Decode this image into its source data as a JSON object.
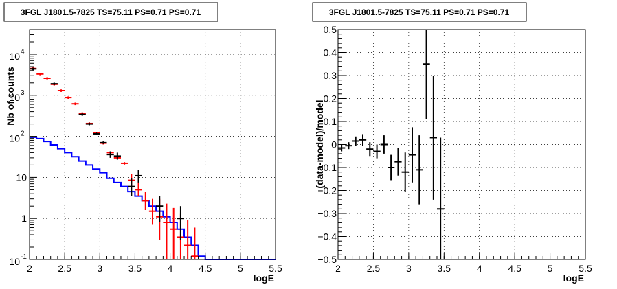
{
  "chart_data": [
    {
      "type": "histogram",
      "title": "3FGL J1801.5-7825 TS=75.11 PS=0.71 PS=0.71",
      "xlabel": "logE",
      "ylabel": "Nb of counts",
      "xlim": [
        2,
        5.5
      ],
      "ylim": [
        0.1,
        40000
      ],
      "yscale": "log",
      "grid": true,
      "x_ticks": [
        "2",
        "2.5",
        "3",
        "3.5",
        "4",
        "4.5",
        "5",
        "5.5"
      ],
      "y_ticks": [
        {
          "value": 0.1,
          "label": "10",
          "exp": "-1"
        },
        {
          "value": 1,
          "label": "1",
          "exp": ""
        },
        {
          "value": 10,
          "label": "10",
          "exp": ""
        },
        {
          "value": 100,
          "label": "10",
          "exp": "2"
        },
        {
          "value": 1000,
          "label": "10",
          "exp": "3"
        },
        {
          "value": 10000,
          "label": "10",
          "exp": "4"
        }
      ],
      "series": [
        {
          "color": "#0000ff",
          "style": "step",
          "x": [
            2.0,
            2.1,
            2.2,
            2.3,
            2.4,
            2.5,
            2.6,
            2.7,
            2.8,
            2.9,
            3.0,
            3.1,
            3.2,
            3.3,
            3.4,
            3.5,
            3.6,
            3.7,
            3.8,
            3.9,
            4.0,
            4.1,
            4.2,
            4.3,
            4.4,
            4.5,
            4.6,
            5.5
          ],
          "values": [
            95,
            88,
            75,
            62,
            50,
            40,
            32,
            25,
            20,
            16,
            13,
            9.5,
            7.5,
            6,
            4.5,
            3.5,
            2.7,
            2,
            1.5,
            1.1,
            0.8,
            0.55,
            0.35,
            0.22,
            0.12,
            0.1,
            0.1
          ]
        },
        {
          "color": "#ff0000",
          "style": "errorbar",
          "points": [
            {
              "x": 2.05,
              "y": 4500
            },
            {
              "x": 2.15,
              "y": 3300
            },
            {
              "x": 2.25,
              "y": 2600
            },
            {
              "x": 2.35,
              "y": 1850
            },
            {
              "x": 2.45,
              "y": 1300
            },
            {
              "x": 2.55,
              "y": 880
            },
            {
              "x": 2.65,
              "y": 620
            },
            {
              "x": 2.75,
              "y": 360
            },
            {
              "x": 2.85,
              "y": 205
            },
            {
              "x": 2.95,
              "y": 120
            },
            {
              "x": 3.05,
              "y": 68
            },
            {
              "x": 3.15,
              "y": 40
            },
            {
              "x": 3.25,
              "y": 30
            },
            {
              "x": 3.35,
              "y": 22
            },
            {
              "x": 3.45,
              "y": 8.5,
              "lo": 6,
              "hi": 12
            },
            {
              "x": 3.55,
              "y": 5,
              "lo": 3.5,
              "hi": 8
            },
            {
              "x": 3.65,
              "y": 2.7,
              "lo": 1.6,
              "hi": 4.5
            },
            {
              "x": 3.75,
              "y": 1.5,
              "lo": 0.7,
              "hi": 3
            },
            {
              "x": 3.85,
              "y": 1.1,
              "lo": 0.3,
              "hi": 3
            },
            {
              "x": 3.95,
              "y": 0.8,
              "lo": 0.1,
              "hi": 2.3
            },
            {
              "x": 4.05,
              "y": 0.55,
              "lo": 0.1,
              "hi": 1.8
            },
            {
              "x": 4.15,
              "y": 0.35,
              "lo": 0.1,
              "hi": 1.3
            },
            {
              "x": 4.25,
              "y": 0.22,
              "lo": 0.1,
              "hi": 0.9
            },
            {
              "x": 4.35,
              "y": 0.12,
              "lo": 0.1,
              "hi": 0.6
            }
          ]
        },
        {
          "color": "#000000",
          "style": "errorbar",
          "points": [
            {
              "x": 2.05,
              "y": 4400
            },
            {
              "x": 2.35,
              "y": 1900
            },
            {
              "x": 2.75,
              "y": 340
            },
            {
              "x": 2.85,
              "y": 200
            },
            {
              "x": 2.95,
              "y": 115
            },
            {
              "x": 3.05,
              "y": 70
            },
            {
              "x": 3.15,
              "y": 36,
              "lo": 30,
              "hi": 43
            },
            {
              "x": 3.25,
              "y": 33,
              "lo": 27,
              "hi": 40
            },
            {
              "x": 3.45,
              "y": 6,
              "lo": 3.5,
              "hi": 9.5
            },
            {
              "x": 3.55,
              "y": 11,
              "lo": 7.5,
              "hi": 15
            },
            {
              "x": 3.85,
              "y": 2,
              "lo": 0.8,
              "hi": 3.5
            },
            {
              "x": 4.15,
              "y": 1,
              "lo": 0.3,
              "hi": 2
            }
          ]
        }
      ]
    },
    {
      "type": "scatter",
      "title": "3FGL J1801.5-7825 TS=75.11 PS=0.71 PS=0.71",
      "xlabel": "logE",
      "ylabel": "(data-model)/model",
      "xlim": [
        2,
        5.5
      ],
      "ylim": [
        -0.5,
        0.5
      ],
      "grid": true,
      "x_ticks": [
        "2",
        "2.5",
        "3",
        "3.5",
        "4",
        "4.5",
        "5",
        "5.5"
      ],
      "y_ticks": [
        "−0.5",
        "−0.4",
        "−0.3",
        "−0.2",
        "−0.1",
        "0",
        "0.1",
        "0.2",
        "0.3",
        "0.4",
        "0.5"
      ],
      "series": [
        {
          "color": "#000000",
          "style": "errorbar",
          "points": [
            {
              "x": 2.05,
              "y": -0.015,
              "err": 0.015
            },
            {
              "x": 2.15,
              "y": -0.005,
              "err": 0.015
            },
            {
              "x": 2.25,
              "y": 0.015,
              "err": 0.02
            },
            {
              "x": 2.35,
              "y": 0.02,
              "err": 0.025
            },
            {
              "x": 2.45,
              "y": -0.02,
              "err": 0.03
            },
            {
              "x": 2.55,
              "y": -0.03,
              "err": 0.03
            },
            {
              "x": 2.65,
              "y": 0.0,
              "err": 0.04
            },
            {
              "x": 2.75,
              "y": -0.1,
              "err": 0.055
            },
            {
              "x": 2.85,
              "y": -0.075,
              "err": 0.06
            },
            {
              "x": 2.95,
              "y": -0.12,
              "err": 0.085
            },
            {
              "x": 3.05,
              "y": -0.045,
              "err": 0.12
            },
            {
              "x": 3.15,
              "y": -0.11,
              "err": 0.15
            },
            {
              "x": 3.25,
              "y": 0.35,
              "err": 0.24
            },
            {
              "x": 3.35,
              "y": 0.03,
              "err": 0.27
            },
            {
              "x": 3.45,
              "y": -0.28,
              "err": 0.31
            }
          ]
        }
      ]
    }
  ]
}
